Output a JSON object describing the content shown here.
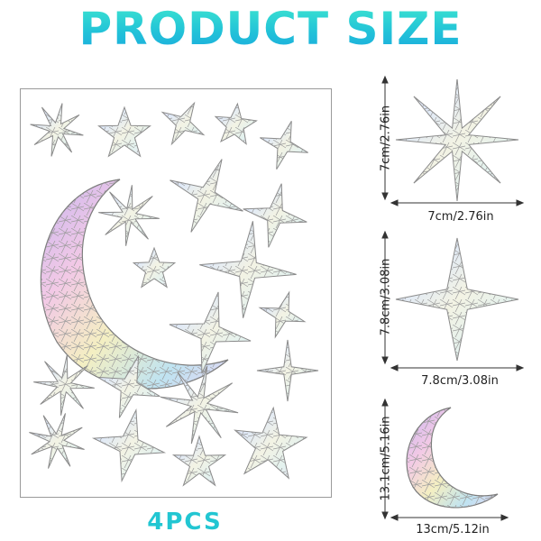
{
  "title": "PRODUCT SIZE",
  "quantity_label": "4PCS",
  "colors": {
    "title_top": "#3fe7cf",
    "title_bottom": "#1aa8de",
    "sheet_border": "#9a9a9a",
    "sticker_outline": "#8a8a8a"
  },
  "samples": [
    {
      "name": "eight-point-star",
      "width_label": "7cm/2.76in",
      "height_label": "7cm/2.76in"
    },
    {
      "name": "four-point-star",
      "width_label": "7.8cm/3.08in",
      "height_label": "7.8cm/3.08in"
    },
    {
      "name": "crescent-moon",
      "width_label": "13cm/5.12in",
      "height_label": "13.1cm/5.16in"
    }
  ]
}
